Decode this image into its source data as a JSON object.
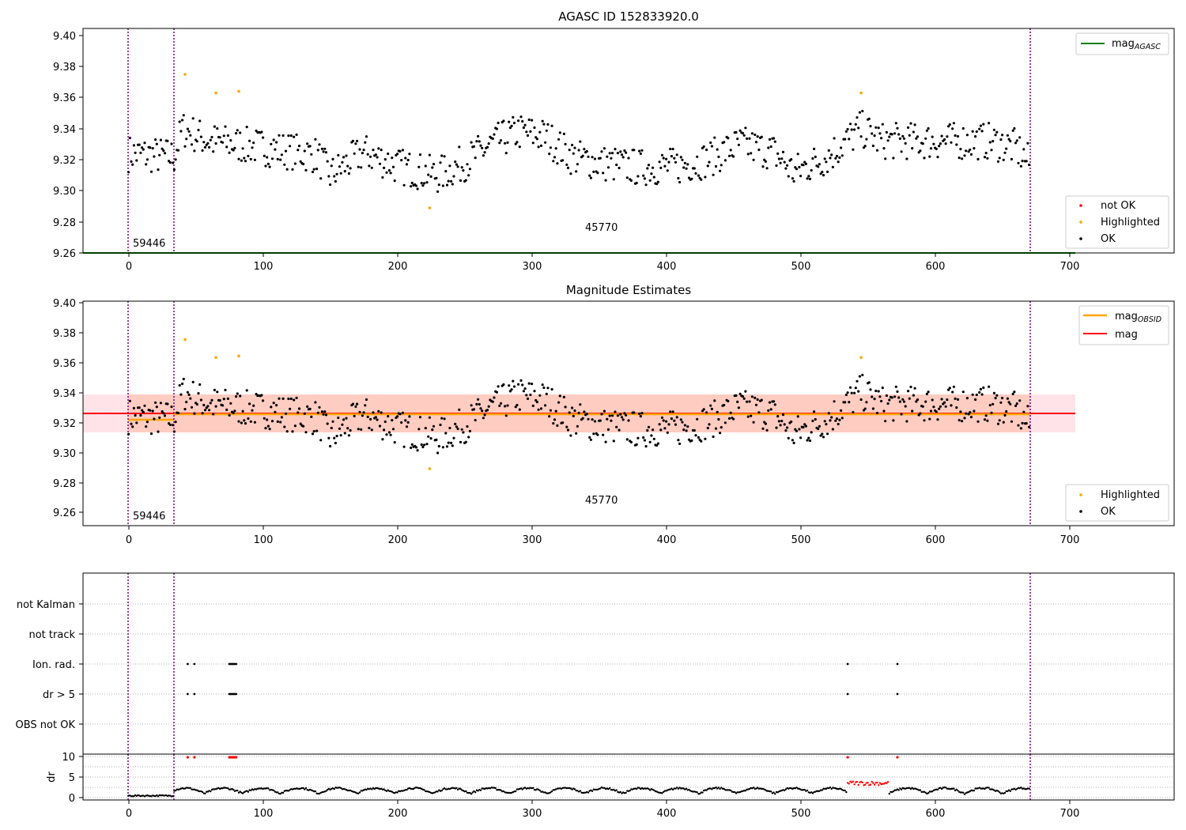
{
  "figure": {
    "title_top": "AGASC ID 152833920.0",
    "title_middle": "Magnitude Estimates"
  },
  "colors": {
    "ok": "#000000",
    "highlighted": "#ffa500",
    "not_ok": "#ff0000",
    "mag_agasc": "#008000",
    "mag_obsid": "#ffa500",
    "mag": "#ff0000",
    "vline": "#800080",
    "band_pink": "#ffc0cb",
    "band_orange": "#ffa07a"
  },
  "chart_data": [
    {
      "id": "top",
      "type": "scatter",
      "title": "AGASC ID 152833920.0",
      "xlim": [
        -34,
        778
      ],
      "ylim": [
        9.26,
        9.405
      ],
      "yticks": [
        "9.26",
        "9.28",
        "9.30",
        "9.32",
        "9.34",
        "9.36",
        "9.38",
        "9.40"
      ],
      "xticks": [
        "0",
        "100",
        "200",
        "300",
        "400",
        "500",
        "600",
        "700"
      ],
      "annotations": [
        "59446",
        "45770"
      ],
      "obs_boundaries": [
        0,
        34,
        670
      ],
      "mag_agasc": 9.26,
      "highlighted_points": [
        [
          42,
          9.375
        ],
        [
          65,
          9.363
        ],
        [
          82,
          9.364
        ],
        [
          224,
          9.289
        ],
        [
          545,
          9.363
        ]
      ],
      "not_ok_points": [],
      "legend_series": [
        "mag_AGASC"
      ],
      "legend_points": [
        "not OK",
        "Highlighted",
        "OK"
      ],
      "ok_points_count": 663
    },
    {
      "id": "middle",
      "type": "scatter",
      "title": "Magnitude Estimates",
      "xlim": [
        -34,
        778
      ],
      "ylim": [
        9.25,
        9.401
      ],
      "yticks": [
        "9.26",
        "9.28",
        "9.30",
        "9.32",
        "9.34",
        "9.36",
        "9.38",
        "9.40"
      ],
      "xticks": [
        "0",
        "100",
        "200",
        "300",
        "400",
        "500",
        "600",
        "700"
      ],
      "annotations": [
        "59446",
        "45770"
      ],
      "obs_boundaries": [
        0,
        34,
        670
      ],
      "mag": 9.326,
      "mag_band": [
        9.3135,
        9.339
      ],
      "mag_obsid": [
        {
          "x0": 0,
          "x1": 34,
          "value": 9.322
        },
        {
          "x0": 34,
          "x1": 704,
          "value": 9.326
        }
      ],
      "highlighted_points": [
        [
          42,
          9.375
        ],
        [
          65,
          9.363
        ],
        [
          82,
          9.364
        ],
        [
          224,
          9.289
        ],
        [
          545,
          9.363
        ]
      ],
      "legend_series": [
        "mag_OBSID",
        "mag"
      ],
      "legend_points": [
        "Highlighted",
        "OK"
      ]
    },
    {
      "id": "flags",
      "type": "scatter",
      "xlim": [
        -34,
        778
      ],
      "categories": [
        "not Kalman",
        "not track",
        "Ion. rad.",
        "dr > 5",
        "OBS not OK"
      ],
      "flag_points": {
        "Ion. rad.": [
          44,
          49,
          75,
          76,
          77,
          78,
          79,
          80,
          535,
          572
        ],
        "dr > 5": [
          44,
          49,
          75,
          76,
          77,
          78,
          79,
          80,
          535,
          572
        ]
      },
      "obs_boundaries": [
        0,
        34,
        670
      ]
    },
    {
      "id": "dr",
      "type": "scatter",
      "ylabel": "dr",
      "xlim": [
        -34,
        778
      ],
      "ylim": [
        -0.5,
        10.5
      ],
      "yticks": [
        "0",
        "5",
        "10"
      ],
      "xticks": [
        "0",
        "100",
        "200",
        "300",
        "400",
        "500",
        "600",
        "700"
      ],
      "red_points": [
        [
          44,
          9.8
        ],
        [
          49,
          9.8
        ],
        [
          75,
          9.8
        ],
        [
          76,
          9.8
        ],
        [
          77,
          9.8
        ],
        [
          78,
          9.8
        ],
        [
          79,
          9.8
        ],
        [
          80,
          9.8
        ],
        [
          535,
          9.8
        ],
        [
          572,
          9.8
        ]
      ],
      "obs_boundaries": [
        0,
        34,
        670
      ]
    }
  ],
  "legend": {
    "top": {
      "mag_base": "mag",
      "mag_sub": "AGASC",
      "not_ok": "not OK",
      "highlighted": "Highlighted",
      "ok": "OK"
    },
    "middle": {
      "mag_obsid_base": "mag",
      "mag_obsid_sub": "OBSID",
      "mag": "mag",
      "highlighted": "Highlighted",
      "ok": "OK"
    }
  },
  "annotations": {
    "left": "59446",
    "right": "45770"
  },
  "flags": {
    "not_kalman": "not Kalman",
    "not_track": "not track",
    "ion_rad": "Ion. rad.",
    "dr_gt5": "dr > 5",
    "obs_not_ok": "OBS not OK"
  },
  "dr_axis": {
    "label": "dr",
    "ticks": [
      "0",
      "5",
      "10"
    ]
  },
  "xaxis": {
    "ticks": [
      "0",
      "100",
      "200",
      "300",
      "400",
      "500",
      "600",
      "700"
    ]
  },
  "yaxis": {
    "ticks": [
      "9.26",
      "9.28",
      "9.30",
      "9.32",
      "9.34",
      "9.36",
      "9.38",
      "9.40"
    ]
  }
}
